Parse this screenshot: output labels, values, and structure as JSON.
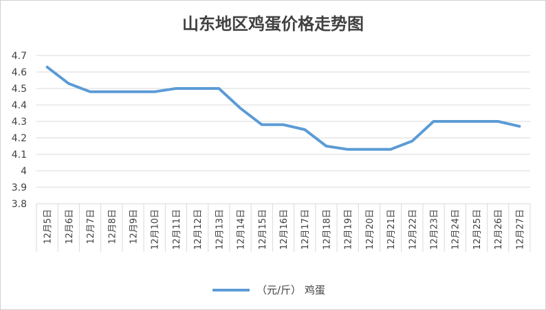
{
  "chart_data": {
    "type": "line",
    "title": "山东地区鸡蛋价格走势图",
    "categories": [
      "12月5日",
      "12月6日",
      "12月7日",
      "12月8日",
      "12月9日",
      "12月10日",
      "12月11日",
      "12月12日",
      "12月13日",
      "12月14日",
      "12月15日",
      "12月16日",
      "12月17日",
      "12月18日",
      "12月19日",
      "12月20日",
      "12月21日",
      "12月22日",
      "12月23日",
      "12月24日",
      "12月25日",
      "12月26日",
      "12月27日"
    ],
    "series": [
      {
        "name": "（元/斤） 鸡蛋",
        "values": [
          4.63,
          4.53,
          4.48,
          4.48,
          4.48,
          4.48,
          4.5,
          4.5,
          4.5,
          4.38,
          4.28,
          4.28,
          4.25,
          4.15,
          4.13,
          4.13,
          4.13,
          4.18,
          4.3,
          4.3,
          4.3,
          4.3,
          4.27
        ],
        "color": "#5b9bd5"
      }
    ],
    "ylim": [
      3.8,
      4.7
    ],
    "yticks": [
      "3.8",
      "3.9",
      "4",
      "4.1",
      "4.2",
      "4.3",
      "4.4",
      "4.5",
      "4.6",
      "4.7"
    ],
    "grid": true,
    "legend_position": "bottom",
    "xlabel": "",
    "ylabel": ""
  },
  "colors": {
    "gridline": "#d9d9d9",
    "text": "#404040"
  }
}
